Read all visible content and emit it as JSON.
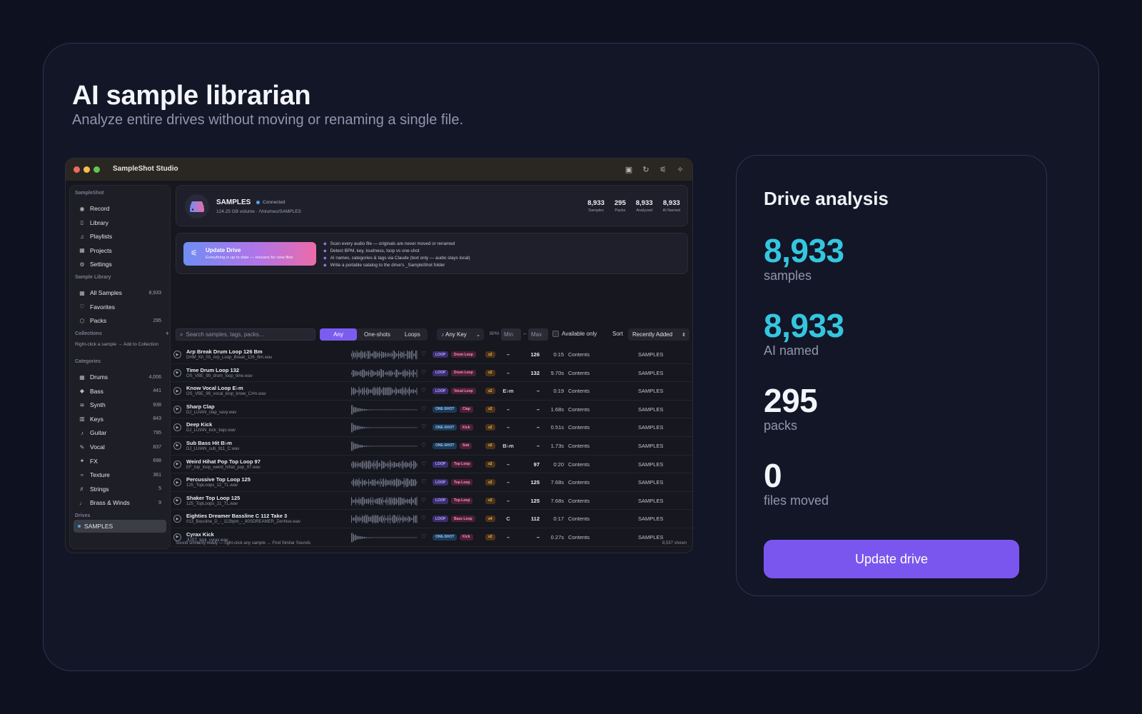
{
  "hero": {
    "title": "AI sample librarian",
    "subtitle": "Analyze entire drives without moving or renaming a single file."
  },
  "app": {
    "title": "SampleShot Studio",
    "sidebar": {
      "section_app": "SampleShot",
      "nav": [
        {
          "icon": "record-icon",
          "glyph": "◉",
          "label": "Record"
        },
        {
          "icon": "library-icon",
          "glyph": "▯",
          "label": "Library"
        },
        {
          "icon": "playlists-icon",
          "glyph": "♫",
          "label": "Playlists"
        },
        {
          "icon": "projects-icon",
          "glyph": "▦",
          "label": "Projects"
        },
        {
          "icon": "settings-icon",
          "glyph": "⚙",
          "label": "Settings"
        }
      ],
      "section_library": "Sample Library",
      "library": [
        {
          "icon": "grid-icon",
          "glyph": "▦",
          "label": "All Samples",
          "count": "8,933"
        },
        {
          "icon": "heart-icon",
          "glyph": "♡",
          "label": "Favorites",
          "count": ""
        },
        {
          "icon": "packs-icon",
          "glyph": "⬡",
          "label": "Packs",
          "count": "295"
        }
      ],
      "section_collections": "Collections",
      "collections_add": "+",
      "collections_note": "Right-click a sample → Add to Collection",
      "section_categories": "Categories",
      "categories": [
        {
          "icon": "drums-icon",
          "glyph": "▦",
          "label": "Drums",
          "count": "4,006"
        },
        {
          "icon": "bass-icon",
          "glyph": "◆",
          "label": "Bass",
          "count": "441"
        },
        {
          "icon": "synth-icon",
          "glyph": "≋",
          "label": "Synth",
          "count": "938"
        },
        {
          "icon": "keys-icon",
          "glyph": "▥",
          "label": "Keys",
          "count": "843"
        },
        {
          "icon": "guitar-icon",
          "glyph": "♪",
          "label": "Guitar",
          "count": "795"
        },
        {
          "icon": "vocal-icon",
          "glyph": "✎",
          "label": "Vocal",
          "count": "837"
        },
        {
          "icon": "fx-icon",
          "glyph": "✦",
          "label": "FX",
          "count": "698"
        },
        {
          "icon": "texture-icon",
          "glyph": "≈",
          "label": "Texture",
          "count": "361"
        },
        {
          "icon": "strings-icon",
          "glyph": "♬",
          "label": "Strings",
          "count": "5"
        },
        {
          "icon": "brass-icon",
          "glyph": "♩",
          "label": "Brass & Winds",
          "count": "9"
        }
      ],
      "section_drives": "Drives",
      "drive_item": "SAMPLES"
    },
    "drive": {
      "name": "SAMPLES",
      "status": "Connected",
      "meta": "124.25 GB volume · /Volumes/SAMPLES",
      "stats": [
        {
          "value": "8,933",
          "label": "Samples"
        },
        {
          "value": "295",
          "label": "Packs"
        },
        {
          "value": "8,933",
          "label": "Analyzed"
        },
        {
          "value": "8,933",
          "label": "AI Named"
        }
      ]
    },
    "update": {
      "title": "Update Drive",
      "subtitle": "Everything is up to date — rescans for new files",
      "bullets": [
        "Scan every audio file — originals are never moved or renamed",
        "Detect BPM, key, loudness, loop vs one-shot",
        "AI names, categories & tags via Claude (text only — audio stays local)",
        "Write a portable catalog to the drive's _SampleShot folder"
      ]
    },
    "toolbar": {
      "search_placeholder": "Search samples, tags, packs...",
      "filters": [
        "Any",
        "One-shots",
        "Loops"
      ],
      "key": "Any Key",
      "bpm_label": "BPM",
      "bpm_min": "Min",
      "bpm_dash": "–",
      "bpm_max": "Max",
      "available": "Available only",
      "sort_label": "Sort",
      "sort_value": "Recently Added"
    },
    "rows": [
      {
        "name": "Arp Break Drum Loop 126 Bm",
        "file": "DHM_Kit_03_Arp_Loop_Break_126_Bm.wav",
        "type": "LOOP",
        "cat": "Drum Loop",
        "mul": "x2",
        "key": "–",
        "bpm": "126",
        "dur": "0:15",
        "content": "Contents",
        "drive": "SAMPLES"
      },
      {
        "name": "Time Drum Loop 132",
        "file": "OS_VBE_99_drum_loop_time.wav",
        "type": "LOOP",
        "cat": "Drum Loop",
        "mul": "x2",
        "key": "–",
        "bpm": "132",
        "dur": "9.70s",
        "content": "Contents",
        "drive": "SAMPLES"
      },
      {
        "name": "Know Vocal Loop E♭m",
        "file": "OS_VBE_99_vocal_loop_know_C#m.wav",
        "type": "LOOP",
        "cat": "Vocal Loop",
        "mul": "x2",
        "key": "E♭m",
        "bpm": "–",
        "dur": "0:19",
        "content": "Contents",
        "drive": "SAMPLES"
      },
      {
        "name": "Sharp Clap",
        "file": "DJ_LUIAN_clap_xavy.wav",
        "type": "ONE-SHOT",
        "cat": "Clap",
        "mul": "x2",
        "key": "–",
        "bpm": "–",
        "dur": "1.68s",
        "content": "Contents",
        "drive": "SAMPLES"
      },
      {
        "name": "Deep Kick",
        "file": "DJ_LUIAN_kick_bajo.wav",
        "type": "ONE-SHOT",
        "cat": "Kick",
        "mul": "x2",
        "key": "–",
        "bpm": "–",
        "dur": "0.51s",
        "content": "Contents",
        "drive": "SAMPLES"
      },
      {
        "name": "Sub Bass Hit B♭m",
        "file": "DJ_LUIAN_sub_911_C.wav",
        "type": "ONE-SHOT",
        "cat": "Sub",
        "mul": "x2",
        "key": "B♭m",
        "bpm": "–",
        "dur": "1.73s",
        "content": "Contents",
        "drive": "SAMPLES"
      },
      {
        "name": "Weird Hihat Pop Top Loop 97",
        "file": "EF_top_loop_weird_hihat_pop_97.wav",
        "type": "LOOP",
        "cat": "Top Loop",
        "mul": "x2",
        "key": "–",
        "bpm": "97",
        "dur": "0:20",
        "content": "Contents",
        "drive": "SAMPLES"
      },
      {
        "name": "Percussive Top Loop 125",
        "file": "125_TopLoops_12_TL.wav",
        "type": "LOOP",
        "cat": "Top Loop",
        "mul": "x2",
        "key": "–",
        "bpm": "125",
        "dur": "7.68s",
        "content": "Contents",
        "drive": "SAMPLES"
      },
      {
        "name": "Shaker Top Loop 125",
        "file": "125_TopLoops_21_TL.wav",
        "type": "LOOP",
        "cat": "Top Loop",
        "mul": "x2",
        "key": "–",
        "bpm": "125",
        "dur": "7.68s",
        "content": "Contents",
        "drive": "SAMPLES"
      },
      {
        "name": "Eighties Dreamer Bassline C 112 Take 3",
        "file": "013_Bassline_D_-_112bpm_-_80SDREAMER_Zenhise.wav",
        "type": "LOOP",
        "cat": "Bass Loop",
        "mul": "x4",
        "key": "C",
        "bpm": "112",
        "dur": "0:17",
        "content": "Contents",
        "drive": "SAMPLES"
      },
      {
        "name": "Cyrax Kick",
        "file": "JUST_kick_cyrax.wav",
        "type": "ONE-SHOT",
        "cat": "Kick",
        "mul": "x2",
        "key": "–",
        "bpm": "–",
        "dur": "0.27s",
        "content": "Contents",
        "drive": "SAMPLES"
      }
    ],
    "status_left": "Sound similarity ready — right-click any sample → Find Similar Sounds",
    "status_right": "8,537 shown"
  },
  "panel": {
    "title": "Drive analysis",
    "stats": [
      {
        "value": "8,933",
        "label": "samples",
        "color": "#35c6df"
      },
      {
        "value": "8,933",
        "label": "AI named",
        "color": "#35c6df"
      },
      {
        "value": "295",
        "label": "packs",
        "color": "#f4f5fa"
      },
      {
        "value": "0",
        "label": "files moved",
        "color": "#f4f5fa"
      }
    ],
    "button": "Update drive"
  }
}
